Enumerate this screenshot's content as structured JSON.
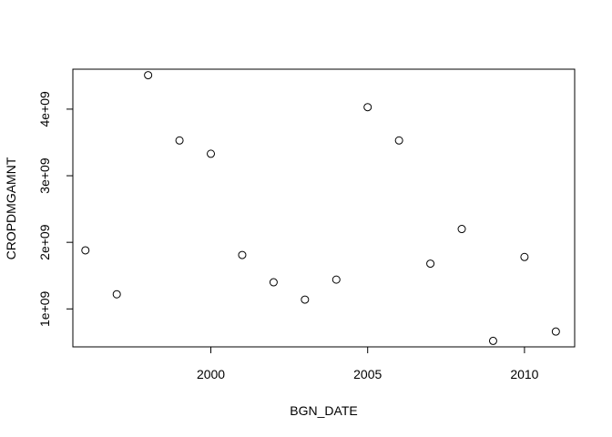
{
  "chart_data": {
    "type": "scatter",
    "title": "",
    "xlabel": "BGN_DATE",
    "ylabel": "CROPDMGAMNT",
    "xlim": [
      1995.6,
      2011.6
    ],
    "ylim": [
      430000000,
      4600000000
    ],
    "x_ticks": [
      2000,
      2005,
      2010
    ],
    "x_tick_labels": [
      "2000",
      "2005",
      "2010"
    ],
    "y_ticks": [
      1000000000,
      2000000000,
      3000000000,
      4000000000
    ],
    "y_tick_labels": [
      "1e+09",
      "2e+09",
      "3e+09",
      "4e+09"
    ],
    "grid": false,
    "marker": "open-circle",
    "points": [
      {
        "x": 1996,
        "y": 1880000000
      },
      {
        "x": 1997,
        "y": 1220000000
      },
      {
        "x": 1998,
        "y": 4510000000
      },
      {
        "x": 1999,
        "y": 3530000000
      },
      {
        "x": 2000,
        "y": 3330000000
      },
      {
        "x": 2001,
        "y": 1810000000
      },
      {
        "x": 2002,
        "y": 1400000000
      },
      {
        "x": 2003,
        "y": 1140000000
      },
      {
        "x": 2004,
        "y": 1440000000
      },
      {
        "x": 2005,
        "y": 4030000000
      },
      {
        "x": 2006,
        "y": 3530000000
      },
      {
        "x": 2007,
        "y": 1680000000
      },
      {
        "x": 2008,
        "y": 2200000000
      },
      {
        "x": 2009,
        "y": 520000000
      },
      {
        "x": 2010,
        "y": 1780000000
      },
      {
        "x": 2011,
        "y": 660000000
      }
    ]
  }
}
